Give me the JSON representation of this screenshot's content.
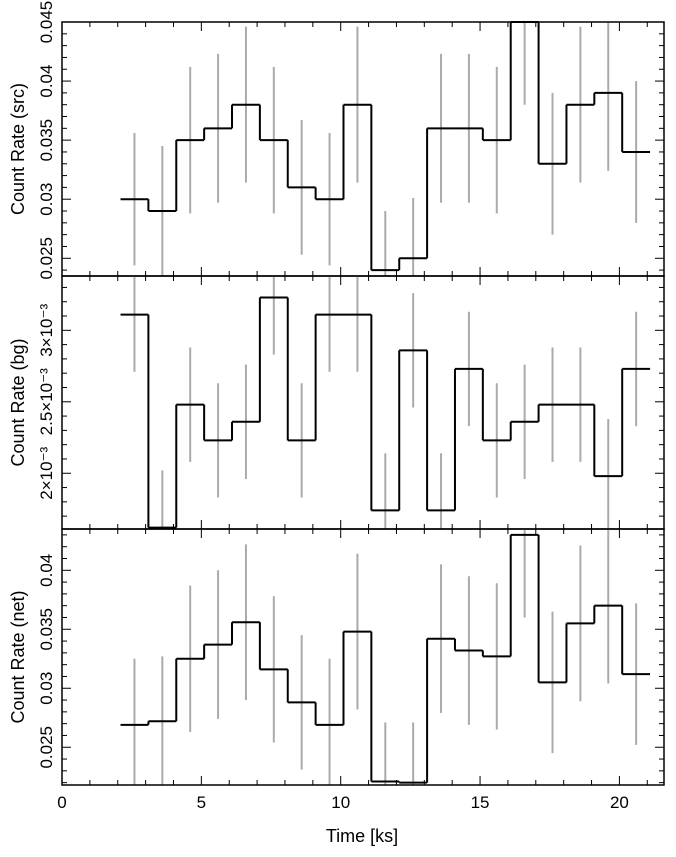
{
  "chart_data": {
    "type": "line",
    "style": "step-histogram-with-errorbars",
    "xlabel": "Time [ks]",
    "x_ticks": [
      0,
      5,
      10,
      15,
      20
    ],
    "xlim": [
      0,
      21.6
    ],
    "bin_centers": [
      2.6,
      3.6,
      4.6,
      5.6,
      6.6,
      7.6,
      8.6,
      9.6,
      10.6,
      11.6,
      12.6,
      13.6,
      14.6,
      15.6,
      16.6,
      17.6,
      18.6,
      19.6,
      20.6
    ],
    "bin_edges": [
      2.1,
      3.1,
      4.1,
      5.1,
      6.1,
      7.1,
      8.1,
      9.1,
      10.1,
      11.1,
      12.1,
      13.1,
      14.1,
      15.1,
      16.1,
      17.1,
      18.1,
      19.1,
      20.1,
      21.1
    ],
    "line_color": "#000000",
    "errorbar_color": "#aaaaaa",
    "panels": [
      {
        "name": "src",
        "ylabel": "Count Rate (src)",
        "ylim": [
          0.0235,
          0.045
        ],
        "y_ticks": [
          0.025,
          0.03,
          0.035,
          0.04,
          0.045
        ],
        "y_tick_labels": [
          "0.025",
          "0.03",
          "0.035",
          "0.04",
          "0.045"
        ],
        "tick_label_rotation": "vertical",
        "values": [
          0.03,
          0.029,
          0.035,
          0.036,
          0.038,
          0.035,
          0.031,
          0.03,
          0.038,
          0.024,
          0.025,
          0.036,
          0.036,
          0.035,
          0.045,
          0.033,
          0.038,
          0.039,
          0.034
        ],
        "errors": [
          0.0056,
          0.0055,
          0.0062,
          0.0063,
          0.0066,
          0.0062,
          0.0057,
          0.0056,
          0.0066,
          0.005,
          0.0051,
          0.0063,
          0.0063,
          0.0062,
          0.007,
          0.006,
          0.0066,
          0.0066,
          0.006
        ]
      },
      {
        "name": "bg",
        "ylabel": "Count Rate (bg)",
        "ylim": [
          0.00161,
          0.00338
        ],
        "y_ticks": [
          0.002,
          0.0025,
          0.003
        ],
        "y_tick_labels": [
          "2×10⁻³",
          "2.5×10⁻³",
          "3×10⁻³"
        ],
        "tick_label_rotation": "vertical",
        "values": [
          0.00311,
          0.00162,
          0.00248,
          0.00223,
          0.00236,
          0.00323,
          0.00223,
          0.00311,
          0.00311,
          0.00174,
          0.00286,
          0.00174,
          0.00273,
          0.00223,
          0.00236,
          0.00248,
          0.00248,
          0.00198,
          0.00273
        ],
        "errors": [
          0.0004,
          0.0004,
          0.0004,
          0.0004,
          0.0004,
          0.0004,
          0.0004,
          0.0004,
          0.0004,
          0.0004,
          0.0004,
          0.0004,
          0.0004,
          0.0004,
          0.0004,
          0.0004,
          0.0004,
          0.0004,
          0.0004
        ]
      },
      {
        "name": "net",
        "ylabel": "Count Rate (net)",
        "ylim": [
          0.0218,
          0.0435
        ],
        "y_ticks": [
          0.025,
          0.03,
          0.035,
          0.04
        ],
        "y_tick_labels": [
          "0.025",
          "0.03",
          "0.035",
          "0.04"
        ],
        "tick_label_rotation": "vertical",
        "values": [
          0.0269,
          0.0272,
          0.0325,
          0.0337,
          0.0356,
          0.0316,
          0.0288,
          0.0269,
          0.0348,
          0.0221,
          0.022,
          0.0342,
          0.0332,
          0.0327,
          0.043,
          0.0305,
          0.0355,
          0.037,
          0.0312
        ],
        "errors": [
          0.0056,
          0.0055,
          0.0062,
          0.0063,
          0.0066,
          0.0062,
          0.0057,
          0.0056,
          0.0066,
          0.005,
          0.0051,
          0.0063,
          0.0063,
          0.0062,
          0.007,
          0.006,
          0.0066,
          0.0066,
          0.006
        ]
      }
    ]
  }
}
